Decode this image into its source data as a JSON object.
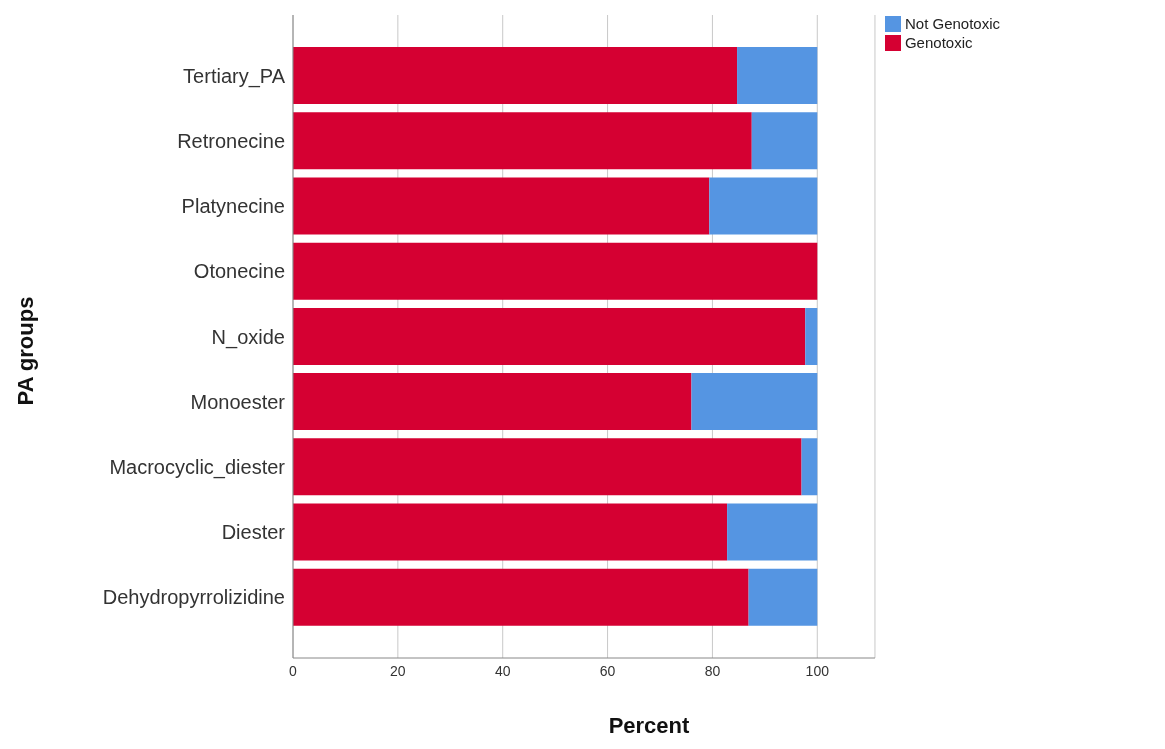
{
  "chart_data": {
    "type": "bar",
    "orientation": "horizontal",
    "stacked": true,
    "xlabel": "Percent",
    "ylabel": "PA groups",
    "categories": [
      "Tertiary_PA",
      "Retronecine",
      "Platynecine",
      "Otonecine",
      "N_oxide",
      "Monoester",
      "Macrocyclic_diester",
      "Diester",
      "Dehydropyrrolizidine"
    ],
    "series": [
      {
        "name": "Genotoxic",
        "color": "#d50032",
        "values": [
          84.7,
          87.5,
          79.4,
          100,
          97.7,
          76.0,
          97.0,
          82.8,
          86.9
        ]
      },
      {
        "name": "Not Genotoxic",
        "color": "#5595e2",
        "values": [
          15.3,
          12.5,
          20.6,
          0,
          2.3,
          24.0,
          3.0,
          17.2,
          13.1
        ]
      }
    ],
    "xlim": [
      0,
      111
    ],
    "xticks": [
      0,
      20,
      40,
      60,
      80,
      100
    ],
    "grid": "x",
    "legend": "top right"
  }
}
